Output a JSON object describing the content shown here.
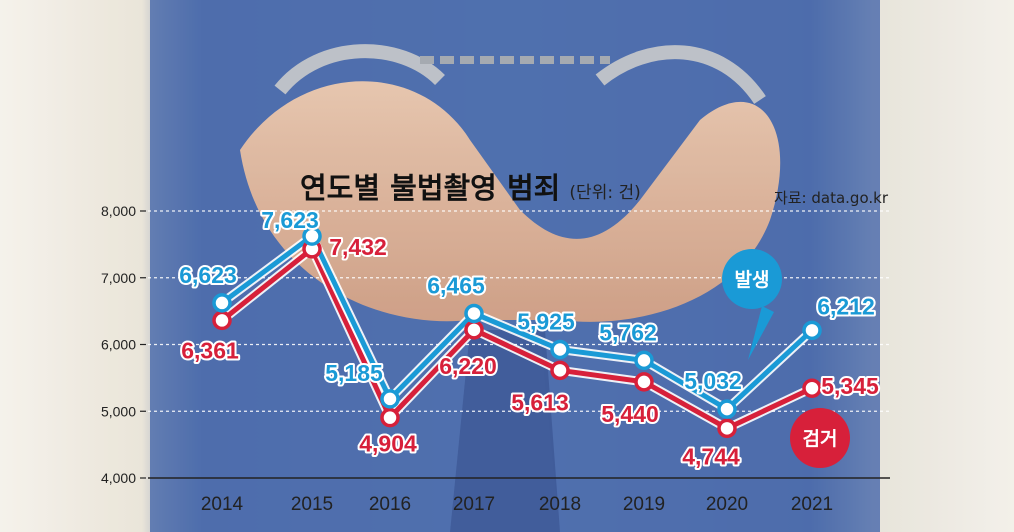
{
  "colors": {
    "occurrence": "#1a9ad6",
    "arrest": "#d7203a",
    "background_dark": "#2c4a8c",
    "background_mid": "#4a6fb3",
    "skin": "#e2b394",
    "gridline": "#ffffff"
  },
  "chart_data": {
    "type": "line",
    "title": "연도별 불법촬영 범죄",
    "unit": "(단위: 건)",
    "source": "자료: data.go.kr",
    "xlabel": "",
    "ylabel": "",
    "x": [
      "2014",
      "2015",
      "2016",
      "2017",
      "2018",
      "2019",
      "2020",
      "2021"
    ],
    "ylim": [
      4000,
      8000
    ],
    "yticks": [
      "8,000",
      "7,000",
      "6,000",
      "5,000",
      "4,000"
    ],
    "grid": true,
    "legend": "inline badges",
    "series": [
      {
        "name": "발생",
        "values": [
          6623,
          7623,
          5185,
          6465,
          5925,
          5762,
          5032,
          6212
        ],
        "labels": [
          "6,623",
          "7,623",
          "5,185",
          "6,465",
          "5,925",
          "5,762",
          "5,032",
          "6,212"
        ]
      },
      {
        "name": "검거",
        "values": [
          6361,
          7432,
          4904,
          6220,
          5613,
          5440,
          4744,
          5345
        ],
        "labels": [
          "6,361",
          "7,432",
          "4,904",
          "6,220",
          "5,613",
          "5,440",
          "4,744",
          "5,345"
        ]
      }
    ]
  }
}
